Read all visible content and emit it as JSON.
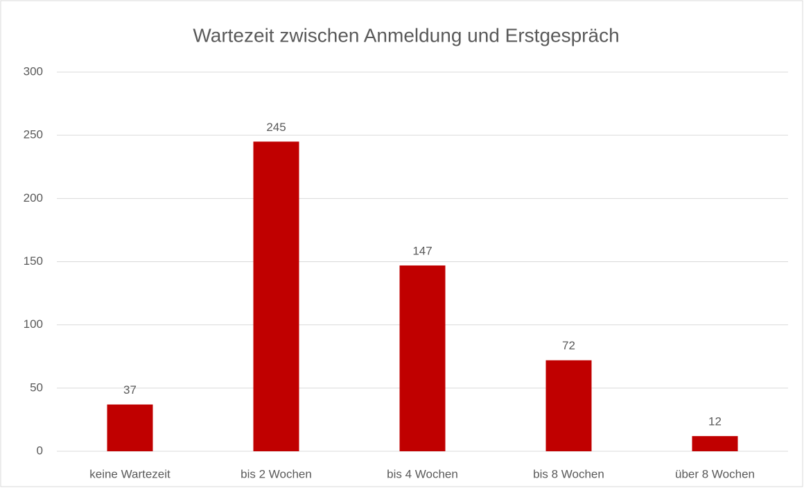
{
  "chart_data": {
    "type": "bar",
    "title": "Wartezeit zwischen Anmeldung und Erstgespräch",
    "categories": [
      "keine Wartezeit",
      "bis 2 Wochen",
      "bis 4 Wochen",
      "bis 8 Wochen",
      "über 8 Wochen"
    ],
    "values": [
      37,
      245,
      147,
      72,
      12
    ],
    "color": "#c00000",
    "ylim": [
      0,
      300
    ],
    "yticks": [
      0,
      50,
      100,
      150,
      200,
      250,
      300
    ],
    "grid": true,
    "data_labels": true
  }
}
